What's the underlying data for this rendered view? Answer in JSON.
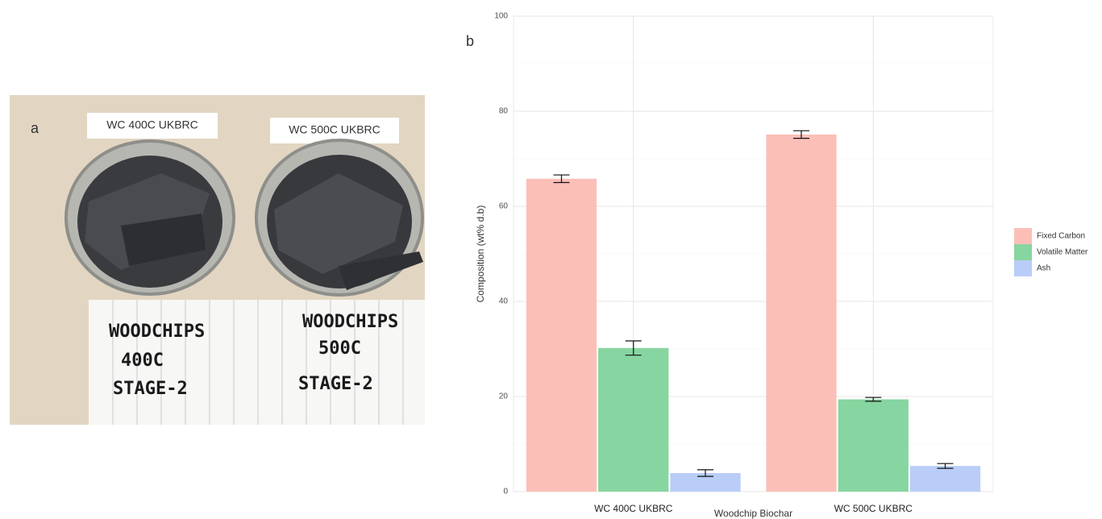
{
  "photo": {
    "label": "a",
    "tags": [
      "WC 400C UKBRC",
      "WC 500C UKBRC"
    ],
    "notes": [
      [
        "WOODCHIPS",
        "400C",
        "STAGE-2"
      ],
      [
        "WOODCHIPS",
        "500C",
        "STAGE-2"
      ]
    ]
  },
  "chart_data": {
    "type": "bar",
    "panel_label": "b",
    "x_label": "Woodchip Biochar",
    "y_label": "Composition (wt% d.b)",
    "categories": [
      "WC 400C UKBRC",
      "WC 500C UKBRC"
    ],
    "series": [
      {
        "name": "Fixed Carbon",
        "color": "#fbbfb8",
        "values": [
          65.8,
          75.1
        ],
        "errors": [
          0.8,
          0.8
        ]
      },
      {
        "name": "Volatile Matter",
        "color": "#87d5a0",
        "values": [
          30.2,
          19.4
        ],
        "errors": [
          1.5,
          0.4
        ]
      },
      {
        "name": "Ash",
        "color": "#b9cdf8",
        "values": [
          3.9,
          5.4
        ],
        "errors": [
          0.7,
          0.5
        ]
      }
    ],
    "ylim": [
      0,
      100
    ],
    "yticks": [
      0,
      20,
      40,
      60,
      80,
      100
    ],
    "minor_yticks": [
      10,
      30,
      50,
      70,
      90
    ],
    "grid": true,
    "legend": "right"
  }
}
